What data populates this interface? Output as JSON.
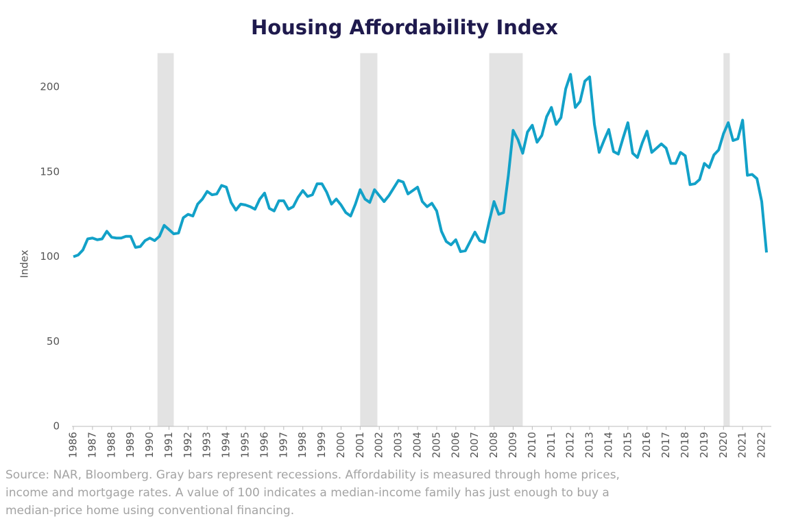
{
  "chart_data": {
    "type": "line",
    "title": "Housing Affordability Index",
    "y_label": "Index",
    "note": "Source: NAR, Bloomberg. Gray bars represent recessions. Affordability is measured through home prices, income and mortgage rates. A value of 100 indicates a median-income family has just enough to buy a median-price home using conventional financing.",
    "xlim": [
      1986,
      2022.5
    ],
    "xticks": [
      1986,
      1987,
      1988,
      1989,
      1990,
      1991,
      1992,
      1993,
      1994,
      1995,
      1996,
      1997,
      1998,
      1999,
      2000,
      2001,
      2002,
      2003,
      2004,
      2005,
      2006,
      2007,
      2008,
      2009,
      2010,
      2011,
      2012,
      2013,
      2014,
      2015,
      2016,
      2017,
      2018,
      2019,
      2020,
      2021,
      2022
    ],
    "ylim": [
      0,
      220
    ],
    "yticks": [
      0,
      50,
      100,
      150,
      200
    ],
    "grid": false,
    "recession_color": "#e3e3e3",
    "recessions": [
      [
        1990.4,
        1991.25
      ],
      [
        2001,
        2001.9
      ],
      [
        2007.75,
        2009.5
      ],
      [
        2020,
        2020.33
      ]
    ],
    "x": [
      1986,
      1986.25,
      1986.5,
      1986.75,
      1987,
      1987.25,
      1987.5,
      1987.75,
      1988,
      1988.25,
      1988.5,
      1988.75,
      1989,
      1989.25,
      1989.5,
      1989.75,
      1990,
      1990.25,
      1990.5,
      1990.75,
      1991,
      1991.25,
      1991.5,
      1991.75,
      1992,
      1992.25,
      1992.5,
      1992.75,
      1993,
      1993.25,
      1993.5,
      1993.75,
      1994,
      1994.25,
      1994.5,
      1994.75,
      1995,
      1995.25,
      1995.5,
      1995.75,
      1996,
      1996.25,
      1996.5,
      1996.75,
      1997,
      1997.25,
      1997.5,
      1997.75,
      1998,
      1998.25,
      1998.5,
      1998.75,
      1999,
      1999.25,
      1999.5,
      1999.75,
      2000,
      2000.25,
      2000.5,
      2000.75,
      2001,
      2001.25,
      2001.5,
      2001.75,
      2002,
      2002.25,
      2002.5,
      2002.75,
      2003,
      2003.25,
      2003.5,
      2003.75,
      2004,
      2004.25,
      2004.5,
      2004.75,
      2005,
      2005.25,
      2005.5,
      2005.75,
      2006,
      2006.25,
      2006.5,
      2006.75,
      2007,
      2007.25,
      2007.5,
      2007.75,
      2008,
      2008.25,
      2008.5,
      2008.75,
      2009,
      2009.25,
      2009.5,
      2009.75,
      2010,
      2010.25,
      2010.5,
      2010.75,
      2011,
      2011.25,
      2011.5,
      2011.75,
      2012,
      2012.25,
      2012.5,
      2012.75,
      2013,
      2013.25,
      2013.5,
      2013.75,
      2014,
      2014.25,
      2014.5,
      2014.75,
      2015,
      2015.25,
      2015.5,
      2015.75,
      2016,
      2016.25,
      2016.5,
      2016.75,
      2017,
      2017.25,
      2017.5,
      2017.75,
      2018,
      2018.25,
      2018.5,
      2018.75,
      2019,
      2019.25,
      2019.5,
      2019.75,
      2020,
      2020.25,
      2020.5,
      2020.75,
      2021,
      2021.25,
      2021.5,
      2021.75,
      2022,
      2022.25
    ],
    "series": [
      {
        "name": "Housing Affordability Index",
        "color": "#12a1c8",
        "values": [
          100,
          101,
          104,
          110.5,
          111,
          110,
          110.5,
          115,
          111.5,
          111,
          111,
          112,
          112,
          105.5,
          106,
          109.5,
          111,
          109.5,
          112,
          118.5,
          116,
          113.5,
          114,
          123,
          125,
          124,
          131,
          134,
          138.5,
          136.5,
          137,
          142,
          141,
          132,
          127.5,
          131,
          130.5,
          129.5,
          128,
          134,
          137.5,
          128.5,
          127,
          133,
          133,
          128,
          129.5,
          135,
          139,
          135.5,
          136.5,
          143,
          143,
          138,
          131,
          134,
          130.5,
          126,
          124,
          131,
          139.5,
          134,
          132,
          139.5,
          136,
          132.5,
          136,
          140.5,
          145,
          144,
          137,
          139,
          141,
          132.5,
          129.5,
          131.5,
          127,
          115,
          109,
          107,
          110,
          103,
          103.5,
          109,
          114.5,
          109.5,
          108.5,
          121,
          132.5,
          125,
          126,
          148,
          174.5,
          169,
          161,
          173.5,
          177.5,
          167.5,
          171.5,
          182.5,
          188,
          178,
          182,
          199,
          207.5,
          188,
          191.5,
          203.5,
          206,
          178,
          161.5,
          168.5,
          175,
          162,
          160.5,
          170,
          179,
          161,
          158.5,
          167,
          174,
          161.5,
          164,
          166.5,
          164,
          155,
          155,
          161.5,
          159.5,
          142.5,
          143,
          145.5,
          155,
          152.5,
          160,
          163,
          172.5,
          179,
          168.5,
          169.5,
          180.5,
          148,
          148.5,
          146,
          132.5,
          102.5
        ]
      }
    ]
  }
}
